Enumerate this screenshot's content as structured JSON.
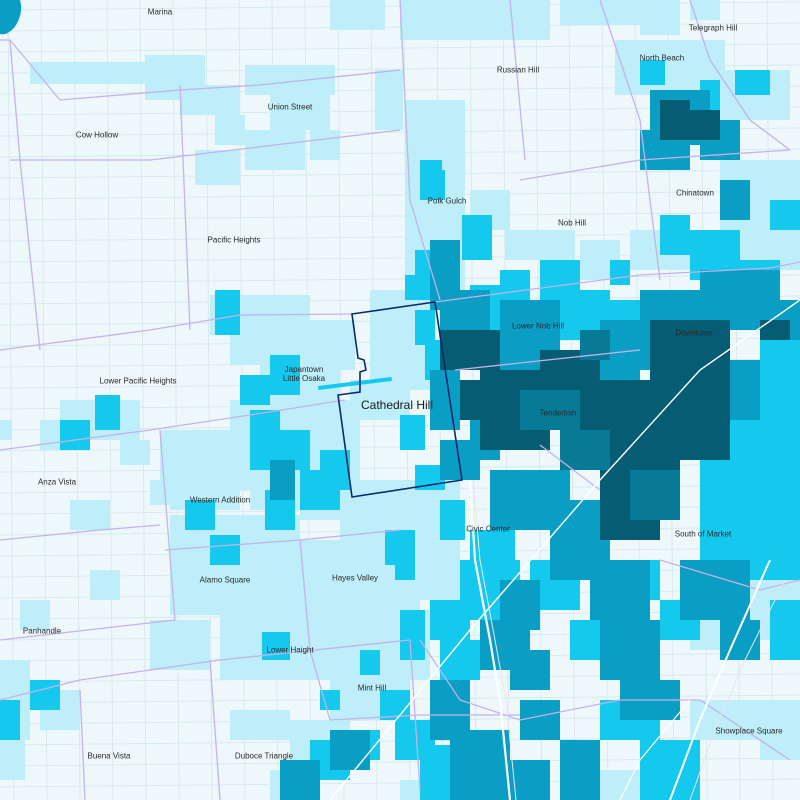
{
  "map": {
    "focus_neighborhood": "Cathedral Hill",
    "neighborhood_labels": [
      "Marina",
      "Telegraph Hill",
      "North Beach",
      "Russian Hill",
      "Union Street",
      "Cow Hollow",
      "Chinatown",
      "Polk Gulch",
      "Nob Hill",
      "Pacific Heights",
      "Lower Nob Hill",
      "Downtown",
      "Japantown\nLittle Osaka",
      "Lower Pacific Heights",
      "Tenderloin",
      "Anza Vista",
      "Western Addition",
      "Civic Center",
      "South of Market",
      "Alamo Square",
      "Hayes Valley",
      "Panhandle",
      "Lower Haight",
      "Mint Hill",
      "Showplace Square",
      "Buena Vista",
      "Duboce Triangle"
    ]
  },
  "colors": {
    "background": "#eef8fb",
    "street": "#d6e9f0",
    "boundary": "#c4b2ea",
    "focus_outline": "#0b2a6e",
    "shade_1": "#bdeefa",
    "shade_2": "#15c8ee",
    "shade_3": "#0a9ec4",
    "shade_4": "#077a98",
    "shade_5": "#055c73"
  }
}
